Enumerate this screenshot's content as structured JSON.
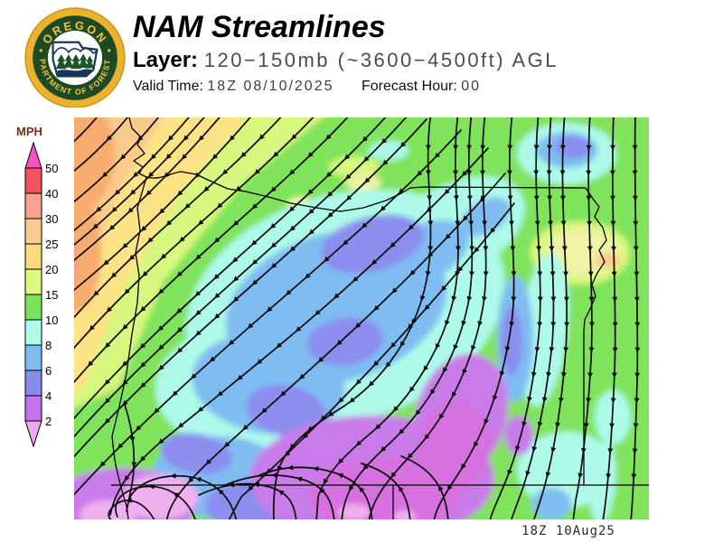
{
  "header": {
    "title": "NAM Streamlines",
    "layer_label": "Layer:",
    "layer_value": "120−150mb (~3600−4500ft) AGL",
    "valid_time_label": "Valid Time:",
    "valid_time_value": "18Z 08/10/2025",
    "forecast_hour_label": "Forecast Hour:",
    "forecast_hour_value": "00"
  },
  "logo": {
    "top_text": "OREGON",
    "bottom_text": "DEPARTMENT OF FORESTRY"
  },
  "legend": {
    "title": "MPH",
    "ticks": [
      "50",
      "40",
      "30",
      "25",
      "20",
      "15",
      "10",
      "8",
      "6",
      "4",
      "2"
    ],
    "segments": [
      {
        "range": ">50",
        "color": "#FB50C5"
      },
      {
        "range": "40-50",
        "color": "#F4535E"
      },
      {
        "range": "30-40",
        "color": "#F7A18F"
      },
      {
        "range": "25-30",
        "color": "#FACC8D"
      },
      {
        "range": "20-25",
        "color": "#FBDA7D"
      },
      {
        "range": "15-20",
        "color": "#DCF87E"
      },
      {
        "range": "10-15",
        "color": "#79E457"
      },
      {
        "range": "8-10",
        "color": "#AFFBEA"
      },
      {
        "range": "6-8",
        "color": "#80BCF1"
      },
      {
        "range": "4-6",
        "color": "#888AEB"
      },
      {
        "range": "2-4",
        "color": "#C374EC"
      },
      {
        "range": "<2",
        "color": "#F0A7ED"
      }
    ]
  },
  "map": {
    "caption": "18Z 10Aug25",
    "palette": {
      "green": "#80E35B",
      "light_green": "#D8F77E",
      "yellow": "#FBE386",
      "pale_yellow": "#EFF3A3",
      "peach": "#FACB8B",
      "orange": "#F8AC6F",
      "salmon": "#F59C90",
      "cyan": "#ADFAEA",
      "light_blue": "#7FBCF2",
      "blue_violet": "#8B8DEF",
      "orchid": "#C97BE9",
      "magenta": "#D76FE0",
      "plum": "#EFB0F0"
    }
  }
}
